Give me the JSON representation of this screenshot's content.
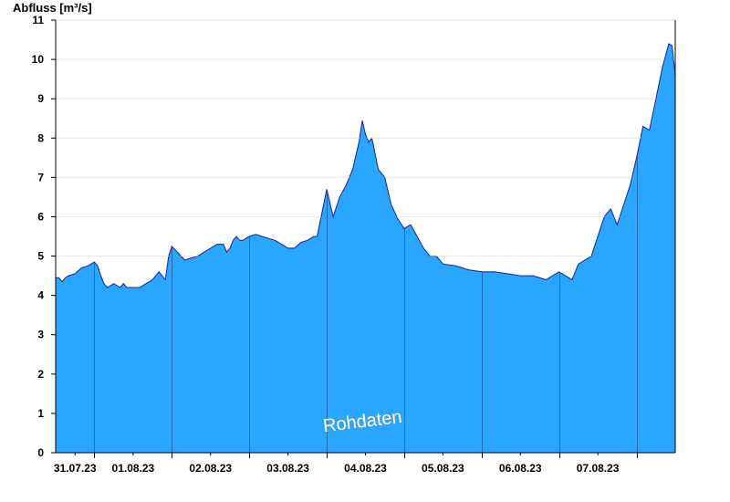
{
  "chart_data": {
    "type": "area",
    "ylabel": "Abfluss [m³/s]",
    "ylim": [
      0,
      11
    ],
    "yticks": [
      0,
      1,
      2,
      3,
      4,
      5,
      6,
      7,
      8,
      9,
      10,
      11
    ],
    "xlim": [
      "2023-07-30T12:00",
      "2023-08-07T12:00"
    ],
    "day_boundaries": [
      "2023-07-31T00:00",
      "2023-08-01T00:00",
      "2023-08-02T00:00",
      "2023-08-03T00:00",
      "2023-08-04T00:00",
      "2023-08-05T00:00",
      "2023-08-06T00:00",
      "2023-08-07T00:00"
    ],
    "xtick_labels": [
      "31.07.23",
      "01.08.23",
      "02.08.23",
      "03.08.23",
      "04.08.23",
      "05.08.23",
      "06.08.23",
      "07.08.23"
    ],
    "grid": true,
    "fill_color": "#29a6ff",
    "line_color": "#1a2f9e",
    "annotation": "Rohdaten",
    "series": [
      {
        "x": [
          "2023-07-30T12:00",
          "2023-07-30T13:00",
          "2023-07-30T14:00",
          "2023-07-30T15:00",
          "2023-07-30T16:00",
          "2023-07-30T18:00",
          "2023-07-30T20:00",
          "2023-07-30T22:00",
          "2023-07-31T00:00",
          "2023-07-31T01:00",
          "2023-07-31T02:00",
          "2023-07-31T03:00",
          "2023-07-31T04:00",
          "2023-07-31T06:00",
          "2023-07-31T08:00",
          "2023-07-31T09:00",
          "2023-07-31T10:00",
          "2023-07-31T11:00",
          "2023-07-31T12:00",
          "2023-07-31T13:00",
          "2023-07-31T14:00",
          "2023-07-31T15:00",
          "2023-07-31T16:00",
          "2023-07-31T17:00",
          "2023-07-31T18:00",
          "2023-07-31T19:00",
          "2023-07-31T20:00",
          "2023-07-31T21:00",
          "2023-07-31T22:00",
          "2023-07-31T23:00",
          "2023-08-01T00:00",
          "2023-08-01T04:00",
          "2023-08-01T08:00",
          "2023-08-01T10:00",
          "2023-08-01T12:00",
          "2023-08-01T14:00",
          "2023-08-01T16:00",
          "2023-08-01T17:00",
          "2023-08-01T18:00",
          "2023-08-01T19:00",
          "2023-08-01T20:00",
          "2023-08-01T21:00",
          "2023-08-01T22:00",
          "2023-08-02T00:00",
          "2023-08-02T02:00",
          "2023-08-02T04:00",
          "2023-08-02T06:00",
          "2023-08-02T08:00",
          "2023-08-02T10:00",
          "2023-08-02T12:00",
          "2023-08-02T14:00",
          "2023-08-02T16:00",
          "2023-08-02T18:00",
          "2023-08-02T20:00",
          "2023-08-02T21:00",
          "2023-08-02T22:00",
          "2023-08-03T00:00",
          "2023-08-03T02:00",
          "2023-08-03T04:00",
          "2023-08-03T06:00",
          "2023-08-03T08:00",
          "2023-08-03T10:00",
          "2023-08-03T11:00",
          "2023-08-03T12:00",
          "2023-08-03T13:00",
          "2023-08-03T14:00",
          "2023-08-03T16:00",
          "2023-08-03T18:00",
          "2023-08-03T20:00",
          "2023-08-03T22:00",
          "2023-08-04T00:00",
          "2023-08-04T02:00",
          "2023-08-04T04:00",
          "2023-08-04T06:00",
          "2023-08-04T08:00",
          "2023-08-04T10:00",
          "2023-08-04T12:00",
          "2023-08-04T16:00",
          "2023-08-04T20:00",
          "2023-08-05T00:00",
          "2023-08-05T04:00",
          "2023-08-05T08:00",
          "2023-08-05T12:00",
          "2023-08-05T16:00",
          "2023-08-05T20:00",
          "2023-08-05T22:00",
          "2023-08-06T00:00",
          "2023-08-06T04:00",
          "2023-08-06T06:00",
          "2023-08-06T08:00",
          "2023-08-06T10:00",
          "2023-08-06T12:00",
          "2023-08-06T14:00",
          "2023-08-06T16:00",
          "2023-08-06T18:00",
          "2023-08-06T20:00",
          "2023-08-06T22:00",
          "2023-08-07T00:00",
          "2023-08-07T02:00",
          "2023-08-07T04:00",
          "2023-08-07T06:00",
          "2023-08-07T08:00",
          "2023-08-07T10:00",
          "2023-08-07T11:00",
          "2023-08-07T12:00"
        ],
        "y": [
          4.45,
          4.45,
          4.35,
          4.45,
          4.5,
          4.55,
          4.7,
          4.75,
          4.85,
          4.75,
          4.5,
          4.3,
          4.2,
          4.3,
          4.2,
          4.3,
          4.2,
          4.2,
          4.2,
          4.2,
          4.2,
          4.25,
          4.3,
          4.35,
          4.4,
          4.5,
          4.6,
          4.5,
          4.4,
          5.0,
          5.25,
          4.9,
          5.0,
          5.1,
          5.2,
          5.3,
          5.3,
          5.1,
          5.2,
          5.4,
          5.5,
          5.4,
          5.4,
          5.5,
          5.55,
          5.5,
          5.45,
          5.4,
          5.3,
          5.2,
          5.2,
          5.35,
          5.4,
          5.5,
          5.5,
          5.9,
          6.7,
          6.0,
          6.5,
          6.8,
          7.2,
          7.9,
          8.45,
          8.1,
          7.9,
          8.0,
          7.2,
          7.0,
          6.3,
          5.95,
          5.7,
          5.8,
          5.5,
          5.2,
          5.0,
          5.0,
          4.8,
          4.75,
          4.65,
          4.6,
          4.6,
          4.55,
          4.5,
          4.5,
          4.4,
          4.5,
          4.6,
          4.4,
          4.8,
          4.9,
          5.0,
          5.5,
          6.0,
          6.2,
          5.8,
          6.3,
          6.8,
          7.5,
          8.3,
          8.2,
          9.0,
          9.8,
          10.4,
          10.35,
          9.6
        ]
      }
    ]
  }
}
